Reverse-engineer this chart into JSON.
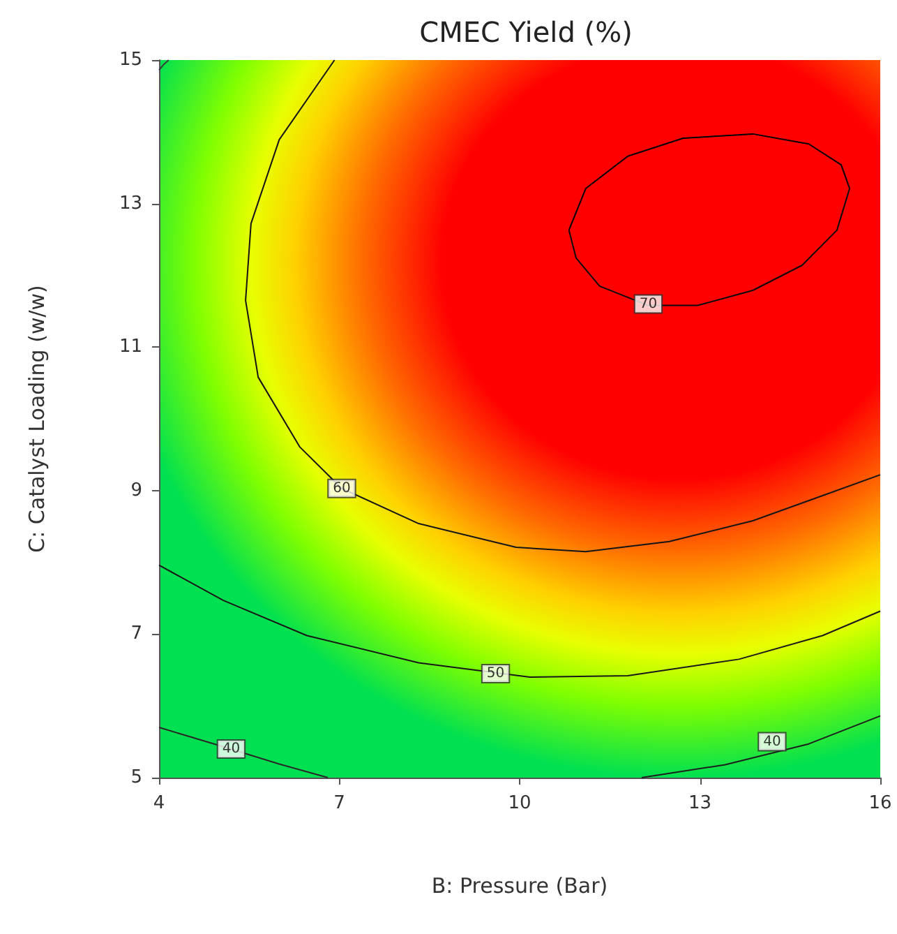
{
  "chart_data": {
    "type": "line",
    "title": "CMEC Yield (%)",
    "xlabel": "B: Pressure (Bar)",
    "ylabel": "C: Catalyst Loading (w/w)",
    "xlim": [
      4,
      16
    ],
    "xticks": [
      4,
      7,
      10,
      13,
      16
    ],
    "ylim": [
      5,
      15
    ],
    "yticks": [
      5,
      7,
      9,
      11,
      13,
      15
    ],
    "marker": "none",
    "line_style": "solid",
    "series": [
      {
        "color": "#000000",
        "x": [
          10.82,
          11.1,
          11.8,
          12.72,
          13.88,
          14.81,
          15.35,
          15.49
        ],
        "values": [
          12.63,
          13.21,
          13.66,
          13.91,
          13.97,
          13.83,
          13.54,
          13.21
        ]
      },
      {
        "color": "#0a0a0a",
        "x": [
          10.82,
          10.94,
          11.33,
          12.14,
          12.96,
          13.88,
          14.7,
          15.28,
          15.49
        ],
        "values": [
          12.63,
          12.24,
          11.85,
          11.58,
          11.58,
          11.79,
          12.14,
          12.63,
          13.21
        ]
      },
      {
        "color": "#141414",
        "x": [
          6.92,
          6.0,
          5.53,
          5.44,
          5.65,
          6.34,
          7.04,
          8.32,
          9.94,
          11.1,
          12.49,
          13.88,
          15.04,
          16
        ],
        "values": [
          15,
          13.89,
          12.72,
          11.65,
          10.58,
          9.61,
          9.03,
          8.54,
          8.21,
          8.15,
          8.29,
          8.58,
          8.93,
          9.22
        ]
      },
      {
        "color": "#181818",
        "x": [
          4,
          5.07,
          6.46,
          8.32,
          10.17,
          11.8,
          13.65,
          15.04,
          16
        ],
        "values": [
          7.96,
          7.47,
          6.98,
          6.6,
          6.4,
          6.42,
          6.65,
          6.98,
          7.32
        ]
      },
      {
        "color": "#282828",
        "x": [
          4,
          5.07,
          6.0,
          6.81
        ],
        "values": [
          5.7,
          5.43,
          5.19,
          5.0
        ]
      },
      {
        "color": "#1e1e1e",
        "x": [
          12.03,
          13.42,
          14.81,
          16
        ],
        "values": [
          5.0,
          5.18,
          5.47,
          5.86
        ]
      },
      {
        "color": "#3c3c3c",
        "x": [
          4,
          4.08,
          4.16
        ],
        "values": [
          14.86,
          14.94,
          15
        ]
      }
    ],
    "annotations": [
      {
        "text": "70",
        "x": 12.14,
        "y": 11.6
      },
      {
        "text": "60",
        "x": 7.04,
        "y": 9.03
      },
      {
        "text": "50",
        "x": 9.6,
        "y": 6.45
      },
      {
        "text": "40",
        "x": 5.2,
        "y": 5.4
      },
      {
        "text": "40",
        "x": 14.2,
        "y": 5.5
      }
    ]
  }
}
